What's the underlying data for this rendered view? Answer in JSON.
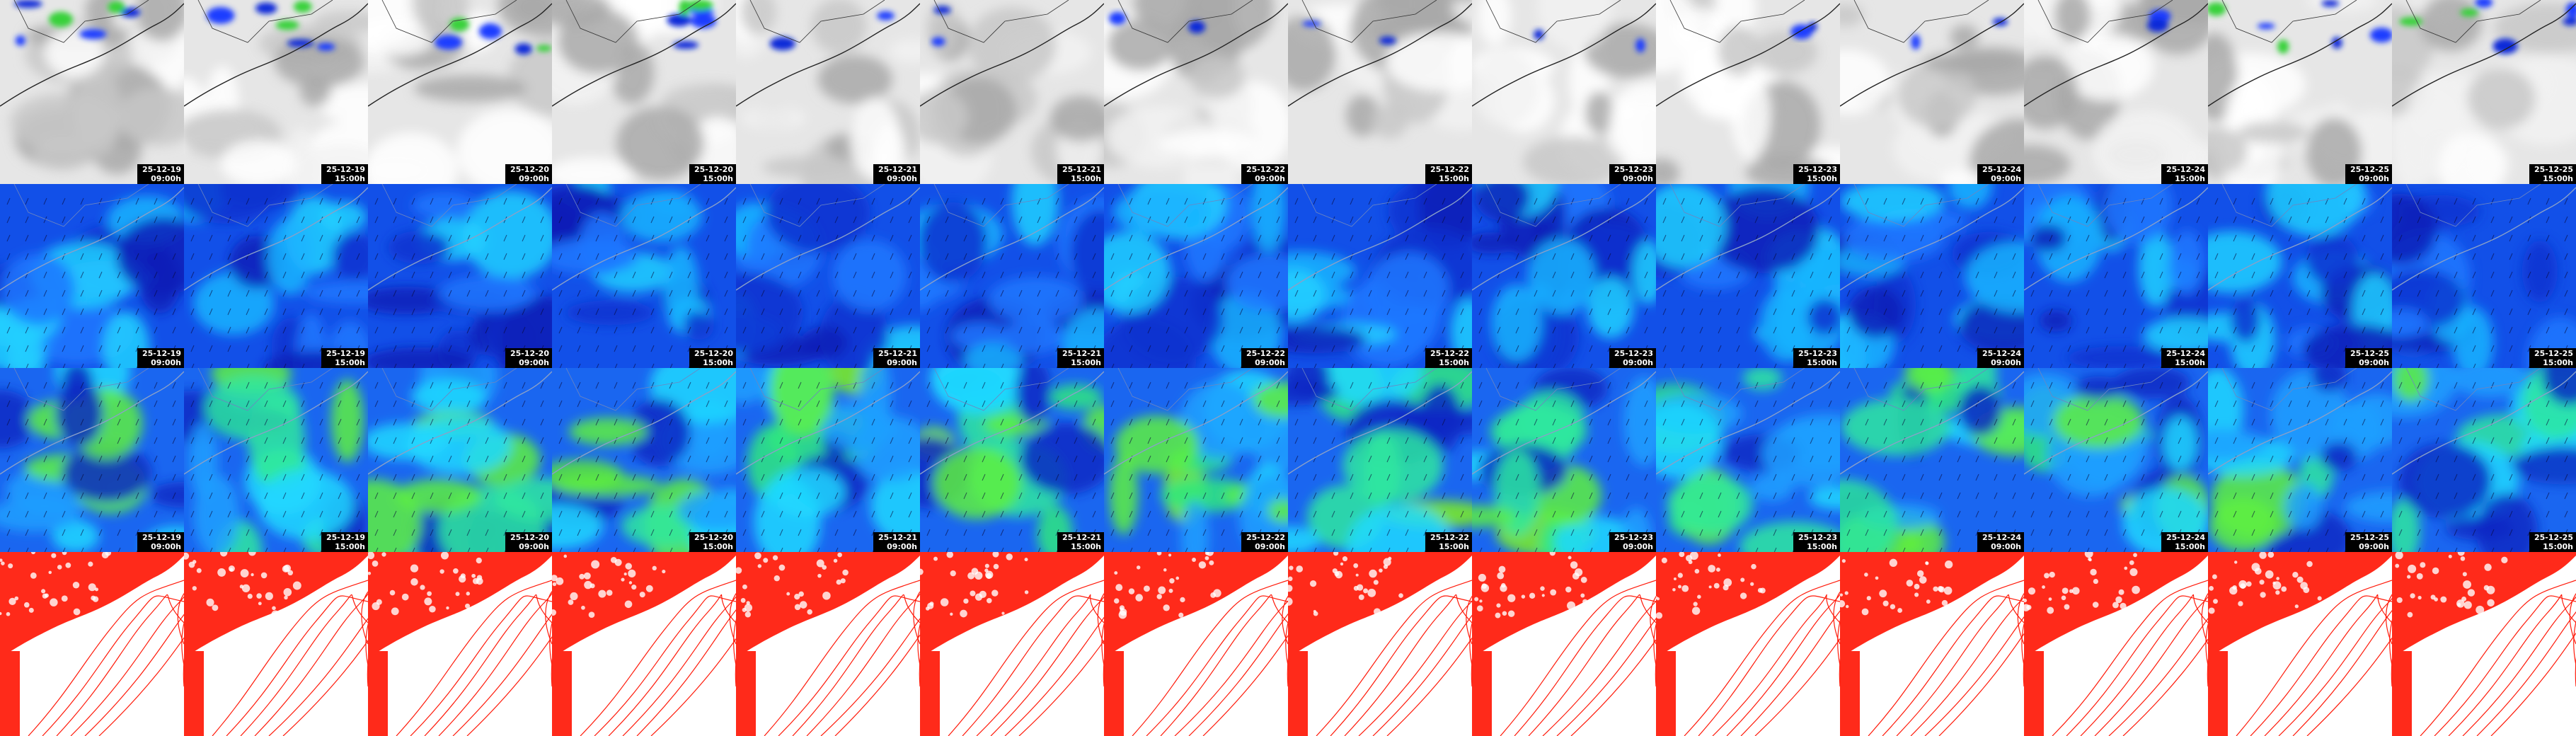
{
  "frames": [
    {
      "date": "25-12-19",
      "time": "09:00h"
    },
    {
      "date": "25-12-19",
      "time": "15:00h"
    },
    {
      "date": "25-12-20",
      "time": "09:00h"
    },
    {
      "date": "25-12-20",
      "time": "15:00h"
    },
    {
      "date": "25-12-21",
      "time": "09:00h"
    },
    {
      "date": "25-12-21",
      "time": "15:00h"
    },
    {
      "date": "25-12-22",
      "time": "09:00h"
    },
    {
      "date": "25-12-22",
      "time": "15:00h"
    },
    {
      "date": "25-12-23",
      "time": "09:00h"
    },
    {
      "date": "25-12-23",
      "time": "15:00h"
    },
    {
      "date": "25-12-24",
      "time": "09:00h"
    },
    {
      "date": "25-12-24",
      "time": "15:00h"
    },
    {
      "date": "25-12-25",
      "time": "09:00h"
    },
    {
      "date": "25-12-25",
      "time": "15:00h"
    }
  ]
}
